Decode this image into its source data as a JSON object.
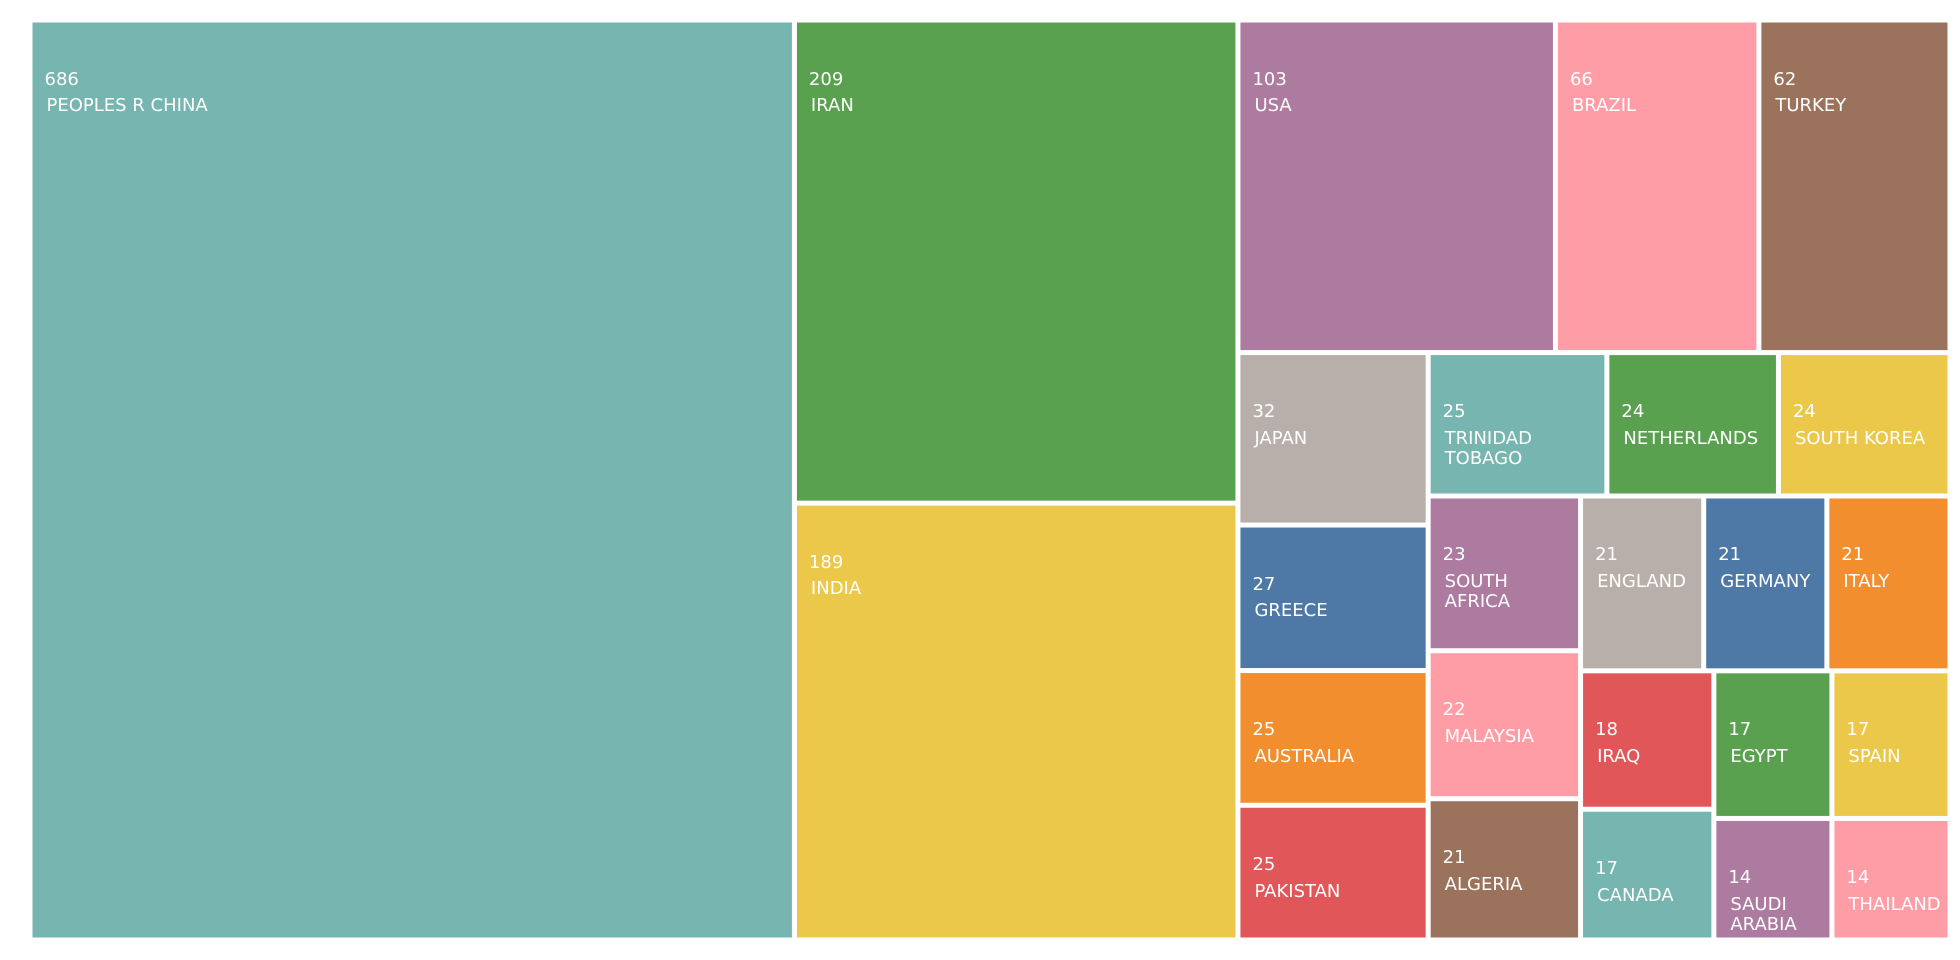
{
  "chart_data": {
    "type": "treemap",
    "categories": [
      "PEOPLES R CHINA",
      "IRAN",
      "INDIA",
      "USA",
      "BRAZIL",
      "TURKEY",
      "JAPAN",
      "GREECE",
      "AUSTRALIA",
      "PAKISTAN",
      "TRINIDAD TOBAGO",
      "NETHERLANDS",
      "SOUTH KOREA",
      "SOUTH AFRICA",
      "MALAYSIA",
      "ALGERIA",
      "ENGLAND",
      "GERMANY",
      "ITALY",
      "IRAQ",
      "CANADA",
      "EGYPT",
      "SPAIN",
      "SAUDI ARABIA",
      "THAILAND"
    ],
    "values": [
      686,
      209,
      189,
      103,
      66,
      62,
      32,
      27,
      25,
      25,
      25,
      24,
      24,
      23,
      22,
      21,
      21,
      21,
      21,
      18,
      17,
      17,
      17,
      14,
      14
    ],
    "colors": [
      "#76b5b0",
      "#59a14f",
      "#ebc84a",
      "#ad7aa0",
      "#ff9da6",
      "#9b735c",
      "#b9afaa",
      "#4e78a6",
      "#f28e2e",
      "#e15759",
      "#76b5b0",
      "#59a14f",
      "#ebc84a",
      "#ad7aa0",
      "#ff9da6",
      "#9b735c",
      "#b9afaa",
      "#4e78a6",
      "#f28e2e",
      "#e15759",
      "#76b5b0",
      "#59a14f",
      "#ebc84a",
      "#ad7aa0",
      "#ff9da6"
    ]
  }
}
